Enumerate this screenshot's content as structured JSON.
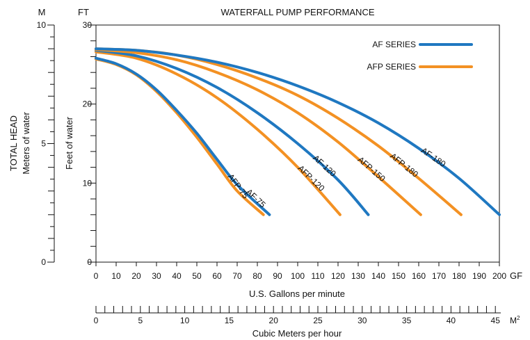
{
  "chart_data": {
    "type": "line",
    "title": "WATERFALL PUMP PERFORMANCE",
    "xlabel": "U.S. Gallons per minute",
    "x_unit": "GF",
    "xlim": [
      0,
      200
    ],
    "x_ticks": [
      0,
      10,
      20,
      30,
      40,
      50,
      60,
      70,
      80,
      90,
      100,
      110,
      120,
      130,
      140,
      150,
      160,
      170,
      180,
      190,
      200
    ],
    "ylabel": "Feet of water",
    "y_unit": "FT",
    "ylim": [
      0,
      30
    ],
    "y_ticks": [
      0,
      10,
      20,
      30
    ],
    "left_axis": {
      "title": "TOTAL HEAD",
      "label": "Meters of water",
      "unit": "M",
      "ticks": [
        0,
        5,
        10
      ]
    },
    "bottom_axis": {
      "label": "Cubic Meters per hour",
      "unit": "M²",
      "ticks": [
        0,
        5,
        10,
        15,
        20,
        25,
        30,
        35,
        40,
        45
      ]
    },
    "grid": false,
    "legend": {
      "position": "top-right",
      "entries": [
        {
          "name": "AF SERIES",
          "color": "#1f78c1"
        },
        {
          "name": "AFP SERIES",
          "color": "#f39123"
        }
      ]
    },
    "series": [
      {
        "name": "AFP-75",
        "group": "AFP SERIES",
        "color": "#f39123",
        "x": [
          0,
          10,
          20,
          30,
          40,
          50,
          60,
          70,
          83
        ],
        "y": [
          25.7,
          25.0,
          23.7,
          21.6,
          18.9,
          15.8,
          12.4,
          9.0,
          6.0
        ]
      },
      {
        "name": "AF-75",
        "group": "AF SERIES",
        "color": "#1f78c1",
        "x": [
          0,
          10,
          20,
          30,
          40,
          50,
          60,
          70,
          86
        ],
        "y": [
          25.8,
          25.1,
          23.8,
          21.8,
          19.2,
          16.3,
          13.0,
          9.8,
          6.0
        ]
      },
      {
        "name": "AFP-120",
        "group": "AFP SERIES",
        "color": "#f39123",
        "x": [
          0,
          20,
          40,
          60,
          80,
          100,
          121
        ],
        "y": [
          26.6,
          25.8,
          23.8,
          20.8,
          16.8,
          12.0,
          6.0
        ]
      },
      {
        "name": "AF-120",
        "group": "AF SERIES",
        "color": "#1f78c1",
        "x": [
          0,
          20,
          40,
          60,
          80,
          100,
          120,
          135
        ],
        "y": [
          26.8,
          26.1,
          24.5,
          22.1,
          18.9,
          15.0,
          10.4,
          6.0
        ]
      },
      {
        "name": "AFP-150",
        "group": "AFP SERIES",
        "color": "#f39123",
        "x": [
          0,
          20,
          40,
          60,
          80,
          100,
          120,
          140,
          161
        ],
        "y": [
          26.9,
          26.5,
          25.6,
          24.0,
          21.8,
          18.9,
          15.2,
          10.8,
          6.0
        ]
      },
      {
        "name": "AFP-180",
        "group": "AFP SERIES",
        "color": "#f39123",
        "x": [
          0,
          20,
          40,
          60,
          80,
          100,
          120,
          140,
          160,
          181
        ],
        "y": [
          27.0,
          26.8,
          26.2,
          25.0,
          23.3,
          21.1,
          18.2,
          14.7,
          10.6,
          6.0
        ]
      },
      {
        "name": "AF-180",
        "group": "AF SERIES",
        "color": "#1f78c1",
        "x": [
          0,
          20,
          40,
          60,
          80,
          100,
          120,
          140,
          160,
          180,
          200
        ],
        "y": [
          27.0,
          26.8,
          26.2,
          25.3,
          24.0,
          22.3,
          20.2,
          17.6,
          14.4,
          10.6,
          6.0
        ]
      }
    ],
    "curve_labels": [
      "AFP-75",
      "AF-75",
      "AFP-120",
      "AF-120",
      "AFP-150",
      "AFP-180",
      "AF-180"
    ]
  }
}
